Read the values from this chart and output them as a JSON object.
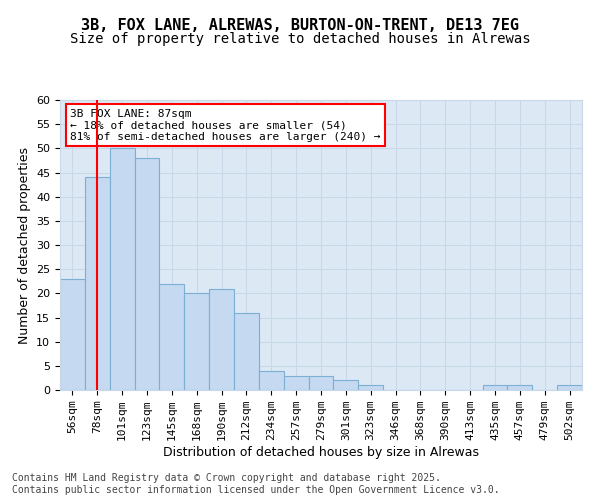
{
  "title_line1": "3B, FOX LANE, ALREWAS, BURTON-ON-TRENT, DE13 7EG",
  "title_line2": "Size of property relative to detached houses in Alrewas",
  "xlabel": "Distribution of detached houses by size in Alrewas",
  "ylabel": "Number of detached properties",
  "categories": [
    "56sqm",
    "78sqm",
    "101sqm",
    "123sqm",
    "145sqm",
    "168sqm",
    "190sqm",
    "212sqm",
    "234sqm",
    "257sqm",
    "279sqm",
    "301sqm",
    "323sqm",
    "346sqm",
    "368sqm",
    "390sqm",
    "413sqm",
    "435sqm",
    "457sqm",
    "479sqm",
    "502sqm"
  ],
  "values": [
    23,
    44,
    50,
    48,
    22,
    20,
    21,
    16,
    4,
    3,
    3,
    2,
    1,
    0,
    0,
    0,
    0,
    1,
    1,
    0,
    1
  ],
  "bar_color": "#c5d9f1",
  "bar_edge_color": "#7bafd4",
  "ref_line_x": 1,
  "ref_line_color": "#ff0000",
  "annotation_text": "3B FOX LANE: 87sqm\n← 18% of detached houses are smaller (54)\n81% of semi-detached houses are larger (240) →",
  "annotation_box_color": "#ffffff",
  "annotation_box_edge_color": "#ff0000",
  "ylim": [
    0,
    60
  ],
  "yticks": [
    0,
    5,
    10,
    15,
    20,
    25,
    30,
    35,
    40,
    45,
    50,
    55,
    60
  ],
  "grid_color": "#c8d8e8",
  "background_color": "#dce9f5",
  "footer_text": "Contains HM Land Registry data © Crown copyright and database right 2025.\nContains public sector information licensed under the Open Government Licence v3.0.",
  "title_fontsize": 11,
  "axis_label_fontsize": 9,
  "tick_fontsize": 8,
  "annotation_fontsize": 8,
  "footer_fontsize": 7
}
